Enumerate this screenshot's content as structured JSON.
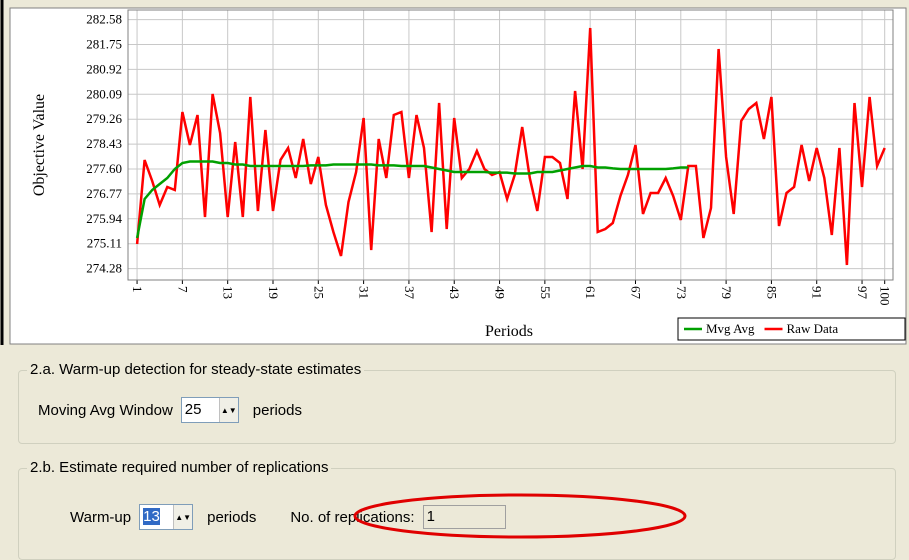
{
  "chart_data": {
    "type": "line",
    "y_label": "Objective Value",
    "x_label": "Periods",
    "x": [
      1,
      2,
      3,
      4,
      5,
      6,
      7,
      8,
      9,
      10,
      11,
      12,
      13,
      14,
      15,
      16,
      17,
      18,
      19,
      20,
      21,
      22,
      23,
      24,
      25,
      26,
      27,
      28,
      29,
      30,
      31,
      32,
      33,
      34,
      35,
      36,
      37,
      38,
      39,
      40,
      41,
      42,
      43,
      44,
      45,
      46,
      47,
      48,
      49,
      50,
      51,
      52,
      53,
      54,
      55,
      56,
      57,
      58,
      59,
      60,
      61,
      62,
      63,
      64,
      65,
      66,
      67,
      68,
      69,
      70,
      71,
      72,
      73,
      74,
      75,
      76,
      77,
      78,
      79,
      80,
      81,
      82,
      83,
      84,
      85,
      86,
      87,
      88,
      89,
      90,
      91,
      92,
      93,
      94,
      95,
      96,
      97,
      98,
      99,
      100
    ],
    "series": [
      {
        "name": "Mvg Avg",
        "color": "#00a000",
        "values": [
          275.3,
          276.6,
          276.9,
          277.1,
          277.3,
          277.6,
          277.8,
          277.85,
          277.85,
          277.85,
          277.85,
          277.8,
          277.8,
          277.75,
          277.75,
          277.7,
          277.7,
          277.7,
          277.7,
          277.7,
          277.7,
          277.7,
          277.7,
          277.72,
          277.72,
          277.72,
          277.75,
          277.75,
          277.75,
          277.75,
          277.75,
          277.75,
          277.72,
          277.72,
          277.72,
          277.7,
          277.7,
          277.7,
          277.7,
          277.65,
          277.6,
          277.55,
          277.5,
          277.5,
          277.5,
          277.5,
          277.5,
          277.48,
          277.48,
          277.48,
          277.45,
          277.45,
          277.45,
          277.5,
          277.5,
          277.5,
          277.55,
          277.6,
          277.65,
          277.7,
          277.7,
          277.65,
          277.65,
          277.62,
          277.6,
          277.6,
          277.6,
          277.6,
          277.6,
          277.6,
          277.6,
          277.62,
          277.65,
          277.65,
          null,
          null,
          null,
          null,
          null,
          null,
          null,
          null,
          null,
          null,
          null,
          null,
          null,
          null,
          null,
          null,
          null,
          null,
          null,
          null,
          null,
          null,
          null,
          null,
          null,
          null
        ]
      },
      {
        "name": "Raw Data",
        "color": "#ff0000",
        "values": [
          275.1,
          277.9,
          277.2,
          276.4,
          277.0,
          276.9,
          279.5,
          278.4,
          279.4,
          276.0,
          280.1,
          278.8,
          276.0,
          278.5,
          276.0,
          280.0,
          276.2,
          278.9,
          276.2,
          277.9,
          278.3,
          277.3,
          278.6,
          277.1,
          278.0,
          276.4,
          275.5,
          274.7,
          276.5,
          277.5,
          279.3,
          274.9,
          278.6,
          277.3,
          279.4,
          279.5,
          277.3,
          279.4,
          278.3,
          275.5,
          279.8,
          275.6,
          279.3,
          277.3,
          277.6,
          278.2,
          277.6,
          277.4,
          277.5,
          276.6,
          277.4,
          279.0,
          277.3,
          276.2,
          278.0,
          278.0,
          277.8,
          276.6,
          280.2,
          277.6,
          282.3,
          275.5,
          275.6,
          275.8,
          276.7,
          277.4,
          278.4,
          276.1,
          276.8,
          276.8,
          277.3,
          276.7,
          275.9,
          277.7,
          277.7,
          275.3,
          276.3,
          281.6,
          278.0,
          276.1,
          279.2,
          279.6,
          279.8,
          278.6,
          280.0,
          275.7,
          276.8,
          277.0,
          278.4,
          277.2,
          278.3,
          277.3,
          275.4,
          278.3,
          274.4,
          279.8,
          277.0,
          280.0,
          277.7,
          278.3
        ]
      }
    ],
    "xlim": [
      -0.2,
      101.1
    ],
    "xticks": [
      1,
      7,
      13,
      19,
      25,
      31,
      37,
      43,
      49,
      55,
      61,
      67,
      73,
      79,
      85,
      91,
      97,
      100
    ],
    "ylim": [
      273.9,
      282.9
    ],
    "yticks": [
      282.58,
      281.75,
      280.92,
      280.09,
      279.26,
      278.43,
      {
        "value": 277.6,
        "label": "277.60"
      },
      276.77,
      275.94,
      275.11,
      274.28
    ],
    "grid": true,
    "legend": "bottom-right"
  },
  "panel": {
    "warmup_detection": {
      "title": "2.a. Warm-up detection for steady-state estimates",
      "label": "Moving Avg Window",
      "value": "25",
      "unit": "periods"
    },
    "replications": {
      "title": "2.b. Estimate required number of replications",
      "label": "Warm-up",
      "value": "13",
      "unit": "periods",
      "result_label": "No. of replications:",
      "result_value": "1"
    }
  }
}
